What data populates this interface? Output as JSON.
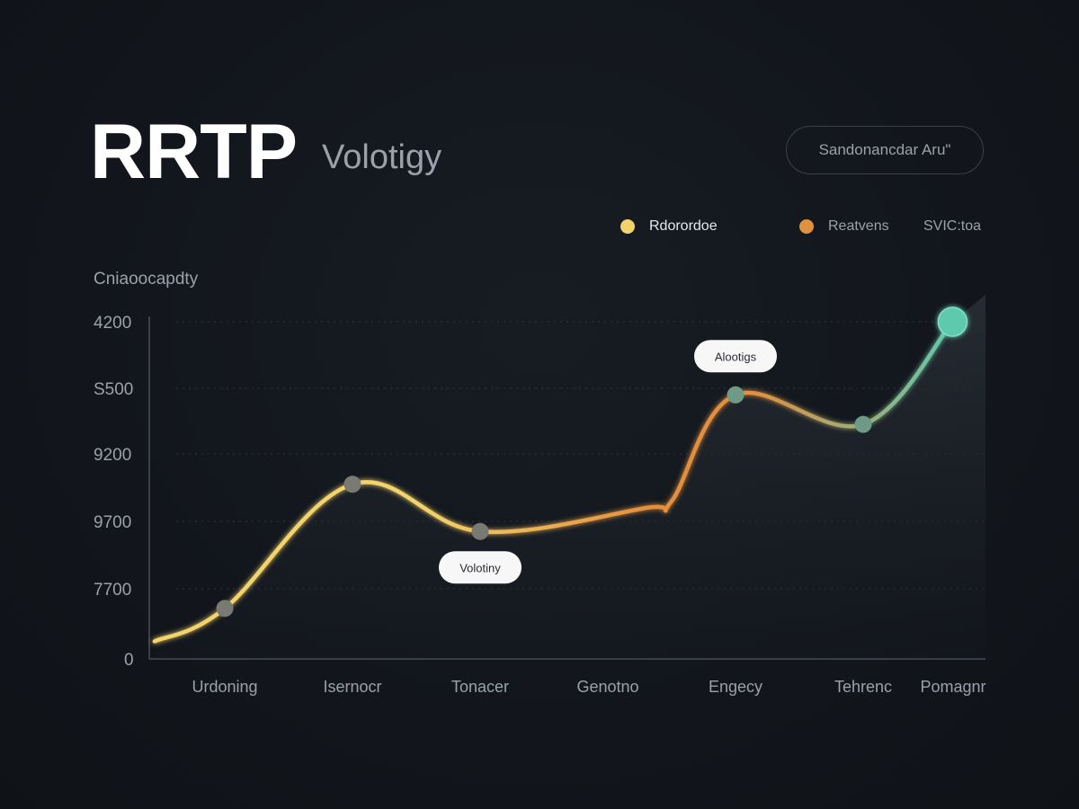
{
  "header": {
    "brand": "RRTP",
    "subtitle": "Volotigy",
    "button_label": "Sandonancdar Aru\""
  },
  "legend": [
    {
      "label": "Rdorordoe",
      "color": "#f2d36b"
    },
    {
      "label": "Reatvens",
      "color": "#e0913d"
    },
    {
      "label": "SVIC:toa",
      "color": ""
    }
  ],
  "chart_data": {
    "type": "line",
    "title": "",
    "ylabel": "Cniaoocapdty",
    "xlabel": "",
    "categories": [
      "Urdoning",
      "Isernocr",
      "Tonacer",
      "Genotno",
      "Engecy",
      "Tehrenc",
      "Pomagnr"
    ],
    "y_tick_labels": [
      "0",
      "7700",
      "9700",
      "9200",
      "S500",
      "4200"
    ],
    "y_tick_levels": [
      0,
      1,
      2,
      3,
      4,
      5
    ],
    "ylim": [
      0,
      5
    ],
    "grid": true,
    "legend_position": "top-right",
    "series": [
      {
        "name": "Rdorordoe",
        "line_x": [
          -0.55,
          0,
          1,
          2,
          3.3,
          3.5,
          4,
          5,
          5.7
        ],
        "line_y": [
          0.25,
          0.72,
          2.55,
          1.85,
          2.2,
          2.3,
          3.9,
          3.45,
          5.0
        ],
        "points": [
          {
            "x": 0,
            "y": 0.72
          },
          {
            "x": 1,
            "y": 2.55
          },
          {
            "x": 2,
            "y": 1.85
          },
          {
            "x": 4,
            "y": 3.9
          },
          {
            "x": 5,
            "y": 3.45
          },
          {
            "x": 5.7,
            "y": 5.0
          }
        ]
      }
    ],
    "gradient_colors": [
      "#f3d46c",
      "#e38f3d",
      "#5fc9ad"
    ],
    "annotations": [
      {
        "text": "Volotiny",
        "x": 2,
        "y": 1.85,
        "position": "below"
      },
      {
        "text": "Alootigs",
        "x": 4,
        "y": 3.9,
        "position": "above"
      }
    ]
  }
}
